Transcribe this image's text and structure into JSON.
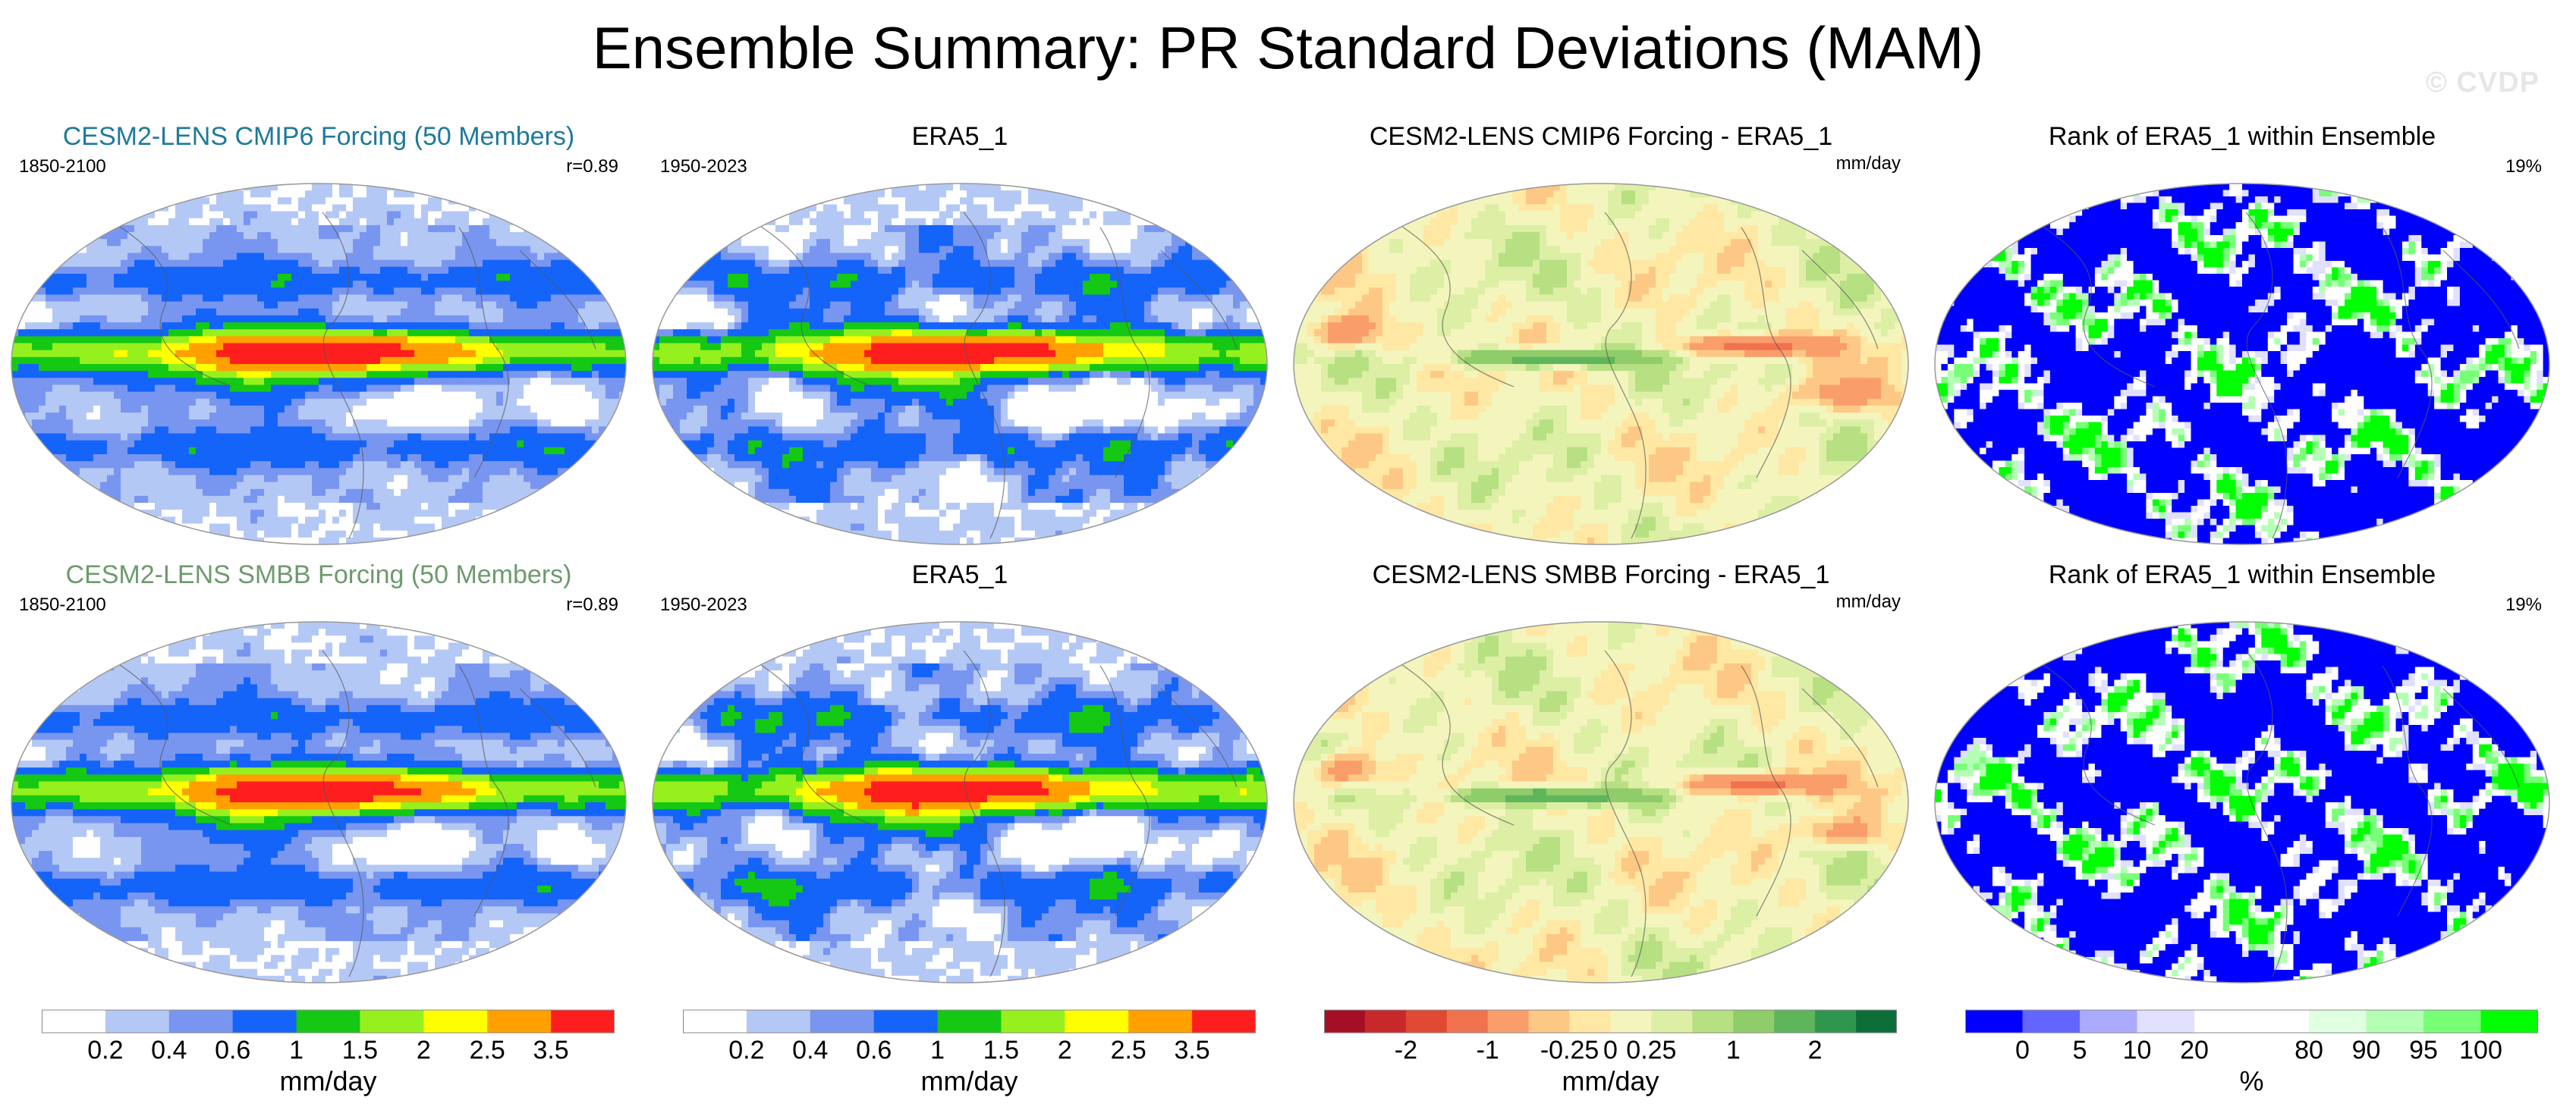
{
  "title": "Ensemble Summary: PR Standard Deviations (MAM)",
  "watermark": "© CVDP",
  "chart_data": [
    {
      "type": "heatmap",
      "title": "CESM2-LENS CMIP6 Forcing (50 Members)",
      "title_color": "#1f7a99",
      "left_label": "1850-2100",
      "right_label": "r=0.89",
      "style": "std",
      "variant": 0
    },
    {
      "type": "heatmap",
      "title": "ERA5_1",
      "title_color": "#000000",
      "left_label": "1950-2023",
      "right_label": "",
      "style": "std",
      "variant": 1
    },
    {
      "type": "heatmap",
      "title": "CESM2-LENS CMIP6 Forcing - ERA5_1",
      "title_color": "#000000",
      "left_label": "",
      "right_label": "mm/day",
      "style": "diff",
      "variant": 0
    },
    {
      "type": "heatmap",
      "title": "Rank of ERA5_1 within Ensemble",
      "title_color": "#000000",
      "left_label": "",
      "right_label": "19%",
      "style": "rank",
      "variant": 0
    },
    {
      "type": "heatmap",
      "title": "CESM2-LENS SMBB Forcing (50 Members)",
      "title_color": "#6e9a6e",
      "left_label": "1850-2100",
      "right_label": "r=0.89",
      "style": "std",
      "variant": 2
    },
    {
      "type": "heatmap",
      "title": "ERA5_1",
      "title_color": "#000000",
      "left_label": "1950-2023",
      "right_label": "",
      "style": "std",
      "variant": 3
    },
    {
      "type": "heatmap",
      "title": "CESM2-LENS SMBB Forcing - ERA5_1",
      "title_color": "#000000",
      "left_label": "",
      "right_label": "mm/day",
      "style": "diff",
      "variant": 1
    },
    {
      "type": "heatmap",
      "title": "Rank of ERA5_1 within Ensemble",
      "title_color": "#000000",
      "left_label": "",
      "right_label": "19%",
      "style": "rank",
      "variant": 1
    }
  ],
  "colorbars": [
    {
      "unit": "mm/day",
      "colors": [
        "#ffffff",
        "#b4c8f5",
        "#7896f0",
        "#1464fa",
        "#14c814",
        "#96f01e",
        "#ffff00",
        "#ffa000",
        "#ff1e1e"
      ],
      "labels": [
        "0.2",
        "0.4",
        "0.6",
        "1",
        "1.5",
        "2",
        "2.5",
        "3.5"
      ]
    },
    {
      "unit": "mm/day",
      "colors": [
        "#ffffff",
        "#b4c8f5",
        "#7896f0",
        "#1464fa",
        "#14c814",
        "#96f01e",
        "#ffff00",
        "#ffa000",
        "#ff1e1e"
      ],
      "labels": [
        "0.2",
        "0.4",
        "0.6",
        "1",
        "1.5",
        "2",
        "2.5",
        "3.5"
      ]
    },
    {
      "unit": "mm/day",
      "colors": [
        "#a50f26",
        "#c8282a",
        "#e04a33",
        "#f1724f",
        "#f99e6b",
        "#fdc885",
        "#fee8a4",
        "#f3f5bd",
        "#dcefa5",
        "#b7e083",
        "#8fcc6a",
        "#5fb55b",
        "#2f964e",
        "#0e6e3a"
      ],
      "labels": [
        "-2",
        "-1",
        "-0.25",
        "0",
        "0.25",
        "1",
        "2"
      ]
    },
    {
      "unit": "%",
      "colors": [
        "#0000ff",
        "#6464ff",
        "#aaaaff",
        "#e1e1ff",
        "#ffffff",
        "#ffffff",
        "#e1ffe1",
        "#b4ffb4",
        "#78ff78",
        "#00ff00"
      ],
      "labels": [
        "0",
        "5",
        "10",
        "20",
        "80",
        "90",
        "95",
        "100"
      ]
    }
  ]
}
